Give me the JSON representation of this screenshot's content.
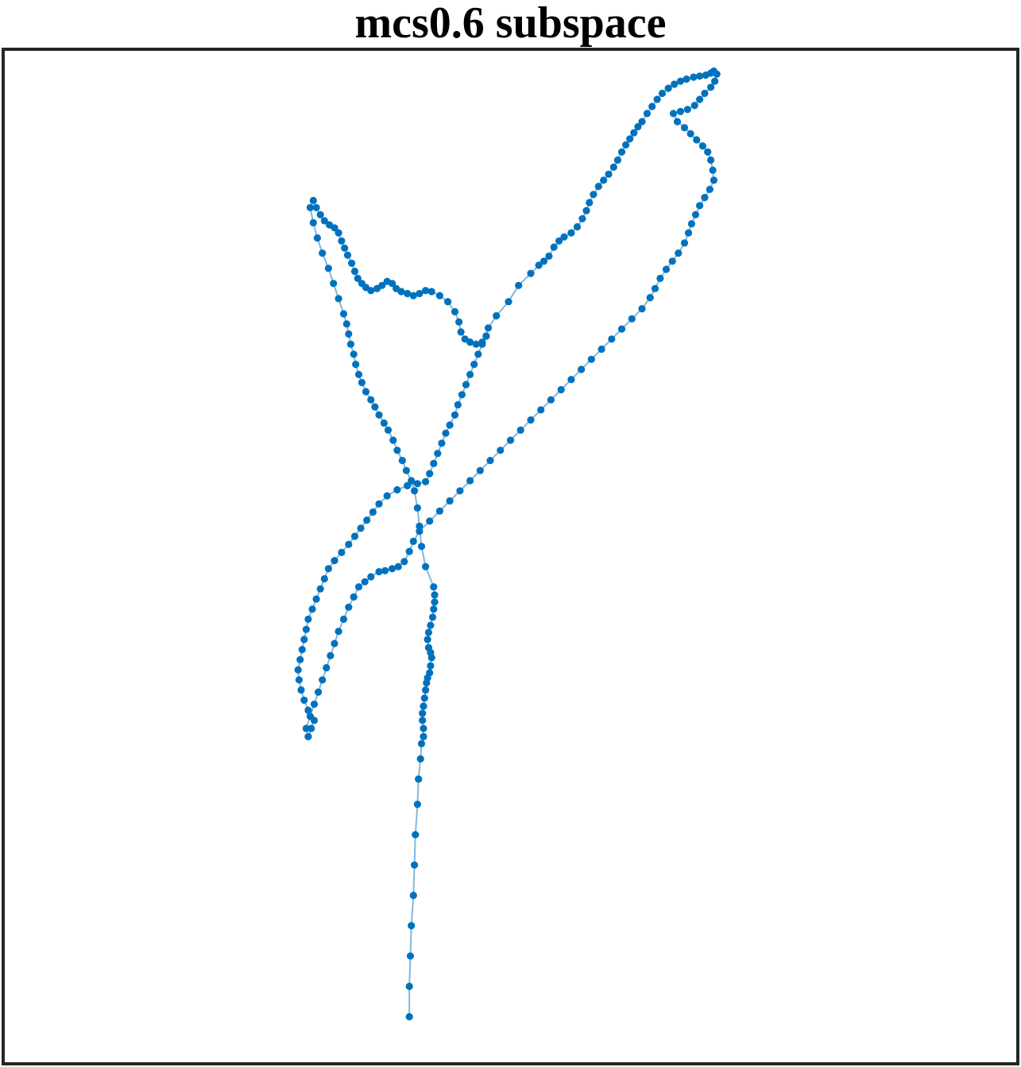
{
  "chart_data": {
    "type": "line",
    "title": "mcs0.6 subspace",
    "xlabel": "",
    "ylabel": "",
    "axes": {
      "ticks_visible": false,
      "grid": false,
      "box": true
    },
    "colors": {
      "marker": "#0072bd",
      "line": "#7fb8df",
      "frame": "#262626"
    },
    "series": [
      {
        "marker": "filled-circle",
        "connected": true,
        "path": [
          [
            0.4,
            0.045
          ],
          [
            0.4,
            0.075
          ],
          [
            0.401,
            0.105
          ],
          [
            0.402,
            0.135
          ],
          [
            0.404,
            0.165
          ],
          [
            0.405,
            0.195
          ],
          [
            0.406,
            0.225
          ],
          [
            0.408,
            0.255
          ],
          [
            0.409,
            0.28
          ],
          [
            0.411,
            0.3
          ],
          [
            0.412,
            0.315
          ],
          [
            0.414,
            0.322
          ],
          [
            0.414,
            0.33
          ],
          [
            0.413,
            0.338
          ],
          [
            0.413,
            0.345
          ],
          [
            0.414,
            0.352
          ],
          [
            0.415,
            0.36
          ],
          [
            0.416,
            0.368
          ],
          [
            0.417,
            0.375
          ],
          [
            0.418,
            0.38
          ],
          [
            0.42,
            0.385
          ],
          [
            0.421,
            0.392
          ],
          [
            0.422,
            0.4
          ],
          [
            0.421,
            0.405
          ],
          [
            0.419,
            0.41
          ],
          [
            0.418,
            0.418
          ],
          [
            0.419,
            0.425
          ],
          [
            0.421,
            0.432
          ],
          [
            0.423,
            0.44
          ],
          [
            0.424,
            0.448
          ],
          [
            0.425,
            0.455
          ],
          [
            0.425,
            0.462
          ],
          [
            0.424,
            0.47
          ],
          [
            0.416,
            0.49
          ],
          [
            0.412,
            0.51
          ],
          [
            0.41,
            0.53
          ],
          [
            0.408,
            0.548
          ],
          [
            0.405,
            0.565
          ],
          [
            0.402,
            0.575
          ],
          [
            0.397,
            0.585
          ],
          [
            0.393,
            0.595
          ],
          [
            0.388,
            0.605
          ],
          [
            0.384,
            0.615
          ],
          [
            0.379,
            0.625
          ],
          [
            0.375,
            0.632
          ],
          [
            0.37,
            0.64
          ],
          [
            0.366,
            0.648
          ],
          [
            0.362,
            0.655
          ],
          [
            0.357,
            0.663
          ],
          [
            0.353,
            0.672
          ],
          [
            0.35,
            0.68
          ],
          [
            0.347,
            0.69
          ],
          [
            0.345,
            0.7
          ],
          [
            0.342,
            0.71
          ],
          [
            0.34,
            0.72
          ],
          [
            0.338,
            0.73
          ],
          [
            0.335,
            0.74
          ],
          [
            0.33,
            0.755
          ],
          [
            0.325,
            0.77
          ],
          [
            0.32,
            0.785
          ],
          [
            0.314,
            0.8
          ],
          [
            0.309,
            0.815
          ],
          [
            0.305,
            0.83
          ],
          [
            0.302,
            0.845
          ],
          [
            0.305,
            0.852
          ],
          [
            0.308,
            0.845
          ],
          [
            0.312,
            0.838
          ],
          [
            0.316,
            0.832
          ],
          [
            0.321,
            0.828
          ],
          [
            0.326,
            0.825
          ],
          [
            0.33,
            0.82
          ],
          [
            0.333,
            0.812
          ],
          [
            0.336,
            0.805
          ],
          [
            0.339,
            0.798
          ],
          [
            0.343,
            0.79
          ],
          [
            0.346,
            0.782
          ],
          [
            0.349,
            0.775
          ],
          [
            0.353,
            0.77
          ],
          [
            0.357,
            0.766
          ],
          [
            0.362,
            0.763
          ],
          [
            0.368,
            0.765
          ],
          [
            0.373,
            0.768
          ],
          [
            0.378,
            0.772
          ],
          [
            0.383,
            0.77
          ],
          [
            0.387,
            0.765
          ],
          [
            0.392,
            0.762
          ],
          [
            0.398,
            0.76
          ],
          [
            0.404,
            0.758
          ],
          [
            0.41,
            0.76
          ],
          [
            0.416,
            0.763
          ],
          [
            0.422,
            0.762
          ],
          [
            0.43,
            0.758
          ],
          [
            0.438,
            0.752
          ],
          [
            0.445,
            0.742
          ],
          [
            0.449,
            0.732
          ],
          [
            0.451,
            0.722
          ],
          [
            0.455,
            0.715
          ],
          [
            0.46,
            0.712
          ],
          [
            0.466,
            0.71
          ],
          [
            0.472,
            0.712
          ],
          [
            0.476,
            0.718
          ],
          [
            0.478,
            0.726
          ],
          [
            0.486,
            0.738
          ],
          [
            0.498,
            0.752
          ],
          [
            0.508,
            0.768
          ],
          [
            0.52,
            0.78
          ],
          [
            0.528,
            0.788
          ],
          [
            0.533,
            0.792
          ],
          [
            0.538,
            0.797
          ],
          [
            0.543,
            0.806
          ],
          [
            0.548,
            0.812
          ],
          [
            0.553,
            0.816
          ],
          [
            0.56,
            0.82
          ],
          [
            0.566,
            0.826
          ],
          [
            0.571,
            0.834
          ],
          [
            0.575,
            0.842
          ],
          [
            0.578,
            0.85
          ],
          [
            0.582,
            0.858
          ],
          [
            0.587,
            0.866
          ],
          [
            0.592,
            0.872
          ],
          [
            0.597,
            0.878
          ],
          [
            0.602,
            0.885
          ],
          [
            0.606,
            0.892
          ],
          [
            0.61,
            0.9
          ],
          [
            0.614,
            0.907
          ],
          [
            0.618,
            0.913
          ],
          [
            0.622,
            0.919
          ],
          [
            0.626,
            0.925
          ],
          [
            0.63,
            0.93
          ],
          [
            0.635,
            0.938
          ],
          [
            0.64,
            0.945
          ],
          [
            0.645,
            0.952
          ],
          [
            0.65,
            0.958
          ],
          [
            0.656,
            0.963
          ],
          [
            0.662,
            0.967
          ],
          [
            0.668,
            0.97
          ],
          [
            0.674,
            0.972
          ],
          [
            0.681,
            0.974
          ],
          [
            0.687,
            0.975
          ],
          [
            0.693,
            0.976
          ],
          [
            0.698,
            0.978
          ],
          [
            0.701,
            0.98
          ],
          [
            0.704,
            0.977
          ],
          [
            0.702,
            0.97
          ],
          [
            0.698,
            0.964
          ],
          [
            0.692,
            0.958
          ],
          [
            0.687,
            0.952
          ],
          [
            0.682,
            0.946
          ],
          [
            0.675,
            0.942
          ],
          [
            0.668,
            0.94
          ],
          [
            0.661,
            0.938
          ],
          [
            0.665,
            0.93
          ],
          [
            0.672,
            0.924
          ],
          [
            0.678,
            0.918
          ],
          [
            0.684,
            0.912
          ],
          [
            0.69,
            0.906
          ],
          [
            0.695,
            0.9
          ],
          [
            0.698,
            0.892
          ],
          [
            0.7,
            0.882
          ],
          [
            0.701,
            0.872
          ],
          [
            0.697,
            0.863
          ],
          [
            0.692,
            0.855
          ],
          [
            0.687,
            0.847
          ],
          [
            0.683,
            0.838
          ],
          [
            0.679,
            0.829
          ],
          [
            0.676,
            0.82
          ],
          [
            0.672,
            0.81
          ],
          [
            0.666,
            0.8
          ],
          [
            0.66,
            0.792
          ],
          [
            0.654,
            0.784
          ],
          [
            0.648,
            0.775
          ],
          [
            0.643,
            0.765
          ],
          [
            0.638,
            0.756
          ],
          [
            0.63,
            0.745
          ],
          [
            0.62,
            0.735
          ],
          [
            0.61,
            0.725
          ],
          [
            0.6,
            0.715
          ],
          [
            0.59,
            0.705
          ],
          [
            0.58,
            0.695
          ],
          [
            0.57,
            0.685
          ],
          [
            0.56,
            0.675
          ],
          [
            0.55,
            0.665
          ],
          [
            0.54,
            0.655
          ],
          [
            0.53,
            0.645
          ],
          [
            0.52,
            0.635
          ],
          [
            0.51,
            0.625
          ],
          [
            0.5,
            0.615
          ],
          [
            0.49,
            0.605
          ],
          [
            0.48,
            0.595
          ],
          [
            0.47,
            0.585
          ],
          [
            0.46,
            0.575
          ],
          [
            0.45,
            0.565
          ],
          [
            0.44,
            0.555
          ],
          [
            0.43,
            0.545
          ],
          [
            0.42,
            0.535
          ],
          [
            0.41,
            0.525
          ],
          [
            0.404,
            0.515
          ],
          [
            0.4,
            0.505
          ],
          [
            0.395,
            0.495
          ],
          [
            0.389,
            0.49
          ],
          [
            0.383,
            0.488
          ],
          [
            0.376,
            0.486
          ],
          [
            0.37,
            0.485
          ],
          [
            0.362,
            0.48
          ],
          [
            0.356,
            0.475
          ],
          [
            0.35,
            0.47
          ],
          [
            0.345,
            0.46
          ],
          [
            0.34,
            0.45
          ],
          [
            0.335,
            0.438
          ],
          [
            0.33,
            0.426
          ],
          [
            0.326,
            0.414
          ],
          [
            0.322,
            0.402
          ],
          [
            0.318,
            0.39
          ],
          [
            0.314,
            0.378
          ],
          [
            0.31,
            0.366
          ],
          [
            0.306,
            0.354
          ],
          [
            0.302,
            0.342
          ],
          [
            0.298,
            0.33
          ],
          [
            0.3,
            0.322
          ],
          [
            0.303,
            0.33
          ],
          [
            0.306,
            0.338
          ],
          [
            0.3,
            0.348
          ],
          [
            0.296,
            0.358
          ],
          [
            0.293,
            0.368
          ],
          [
            0.291,
            0.378
          ],
          [
            0.29,
            0.388
          ],
          [
            0.292,
            0.398
          ],
          [
            0.294,
            0.408
          ],
          [
            0.296,
            0.418
          ],
          [
            0.298,
            0.428
          ],
          [
            0.3,
            0.438
          ],
          [
            0.304,
            0.448
          ],
          [
            0.308,
            0.458
          ],
          [
            0.312,
            0.468
          ],
          [
            0.316,
            0.478
          ],
          [
            0.32,
            0.488
          ],
          [
            0.326,
            0.496
          ],
          [
            0.333,
            0.504
          ],
          [
            0.34,
            0.512
          ],
          [
            0.346,
            0.52
          ],
          [
            0.352,
            0.528
          ],
          [
            0.358,
            0.536
          ],
          [
            0.364,
            0.544
          ],
          [
            0.37,
            0.552
          ],
          [
            0.378,
            0.56
          ],
          [
            0.388,
            0.566
          ],
          [
            0.398,
            0.57
          ],
          [
            0.408,
            0.572
          ],
          [
            0.416,
            0.574
          ],
          [
            0.42,
            0.582
          ],
          [
            0.424,
            0.592
          ],
          [
            0.428,
            0.602
          ],
          [
            0.432,
            0.612
          ],
          [
            0.436,
            0.622
          ],
          [
            0.44,
            0.63
          ],
          [
            0.445,
            0.64
          ],
          [
            0.448,
            0.65
          ],
          [
            0.452,
            0.66
          ],
          [
            0.456,
            0.67
          ],
          [
            0.46,
            0.68
          ],
          [
            0.464,
            0.69
          ],
          [
            0.468,
            0.7
          ],
          [
            0.472,
            0.71
          ],
          [
            0.476,
            0.718
          ]
        ]
      }
    ]
  }
}
